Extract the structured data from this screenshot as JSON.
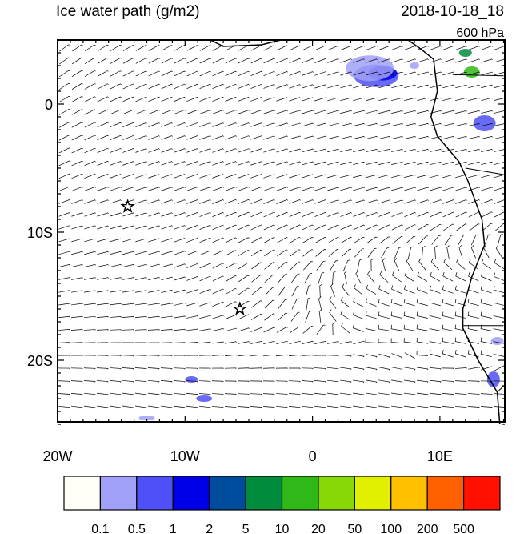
{
  "header": {
    "title": "Ice water path (g/m2)",
    "time": "2018-10-18_18",
    "level": "600 hPa"
  },
  "map": {
    "lat_labels": [
      "0",
      "10S",
      "20S"
    ],
    "lon_labels": [
      "20W",
      "10W",
      "0",
      "10E"
    ]
  },
  "colorbar": {
    "colors": [
      "#fffff8",
      "#a0a0f8",
      "#5050f8",
      "#0000e8",
      "#004c9c",
      "#008c3c",
      "#30b818",
      "#88d808",
      "#e0f000",
      "#ffc000",
      "#ff6000",
      "#ff1000"
    ],
    "labels": [
      "0.1",
      "0.5",
      "1",
      "2",
      "5",
      "10",
      "20",
      "50",
      "100",
      "200",
      "500"
    ]
  }
}
